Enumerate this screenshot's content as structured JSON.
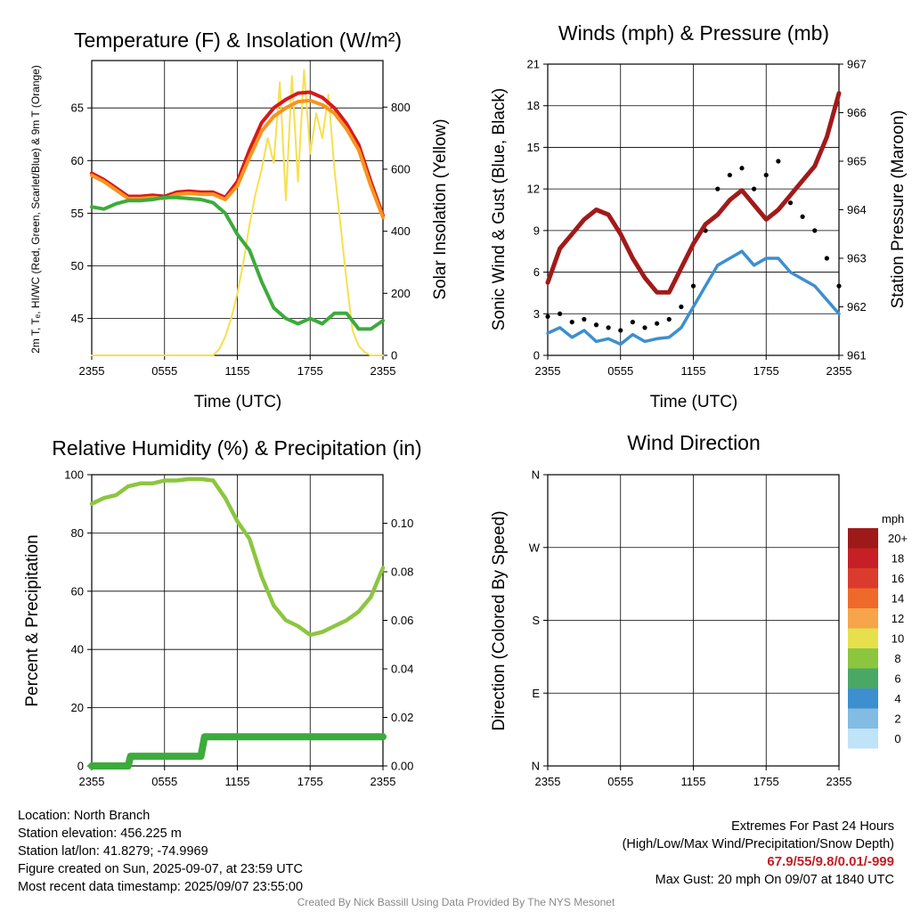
{
  "panels": {
    "temperature": {
      "title": "Temperature (F) & Insolation (W/m²)",
      "xlabel": "Time (UTC)",
      "ylabel_left": "2m T, Tₑ, HI/WC (Red, Green, Scarlet/Blue) & 9m T (Orange)",
      "ylabel_right": "Solar Insolation (Yellow)"
    },
    "winds": {
      "title": "Winds (mph) & Pressure (mb)",
      "xlabel": "Time (UTC)",
      "ylabel_left": "Sonic Wind & Gust (Blue, Black)",
      "ylabel_right": "Station Pressure (Maroon)"
    },
    "humidity": {
      "title": "Relative Humidity (%) & Precipitation (in)",
      "ylabel_left": "Percent & Precipitation"
    },
    "direction": {
      "title": "Wind Direction",
      "ylabel_left": "Direction (Colored By Speed)",
      "legend_title": "mph"
    }
  },
  "chart_data": [
    {
      "type": "line",
      "id": "temperature",
      "title": "Temperature (F) & Insolation (W/m²)",
      "xlabel": "Time (UTC)",
      "x_ticks": [
        "2355",
        "0555",
        "1155",
        "1755",
        "2355"
      ],
      "x_hours": [
        0,
        24
      ],
      "ylim": [
        41.5,
        69.5
      ],
      "y_ticks": [
        45,
        50,
        55,
        60,
        65
      ],
      "y2lim": [
        0,
        950
      ],
      "y2_ticks": [
        0,
        200,
        400,
        600,
        800
      ],
      "series": [
        {
          "name": "2m T",
          "color": "#d7191c",
          "axis": "left",
          "points": [
            [
              0,
              58.8
            ],
            [
              1,
              58.2
            ],
            [
              2,
              57.4
            ],
            [
              3,
              56.6
            ],
            [
              4,
              56.6
            ],
            [
              5,
              56.7
            ],
            [
              6,
              56.6
            ],
            [
              7,
              57.0
            ],
            [
              8,
              57.1
            ],
            [
              9,
              57.0
            ],
            [
              10,
              57.0
            ],
            [
              11,
              56.5
            ],
            [
              12,
              58.0
            ],
            [
              13,
              61.0
            ],
            [
              14,
              63.6
            ],
            [
              15,
              65.0
            ],
            [
              16,
              65.8
            ],
            [
              17,
              66.4
            ],
            [
              18,
              66.5
            ],
            [
              19,
              66.0
            ],
            [
              20,
              65.0
            ],
            [
              21,
              63.5
            ],
            [
              22,
              61.5
            ],
            [
              23,
              58.0
            ],
            [
              24,
              54.8
            ]
          ]
        },
        {
          "name": "9m T",
          "color": "#f7941d",
          "axis": "left",
          "points": [
            [
              0,
              58.6
            ],
            [
              1,
              58.0
            ],
            [
              2,
              57.2
            ],
            [
              3,
              56.4
            ],
            [
              4,
              56.4
            ],
            [
              5,
              56.5
            ],
            [
              6,
              56.4
            ],
            [
              7,
              56.8
            ],
            [
              8,
              56.9
            ],
            [
              9,
              56.8
            ],
            [
              10,
              56.8
            ],
            [
              11,
              56.3
            ],
            [
              12,
              57.6
            ],
            [
              13,
              60.3
            ],
            [
              14,
              62.8
            ],
            [
              15,
              64.2
            ],
            [
              16,
              65.0
            ],
            [
              17,
              65.6
            ],
            [
              18,
              65.7
            ],
            [
              19,
              65.3
            ],
            [
              20,
              64.5
            ],
            [
              21,
              63.0
            ],
            [
              22,
              61.0
            ],
            [
              23,
              57.6
            ],
            [
              24,
              54.6
            ]
          ]
        },
        {
          "name": "Td",
          "color": "#3cab3c",
          "axis": "left",
          "points": [
            [
              0,
              55.6
            ],
            [
              1,
              55.4
            ],
            [
              2,
              55.9
            ],
            [
              3,
              56.2
            ],
            [
              4,
              56.2
            ],
            [
              5,
              56.3
            ],
            [
              6,
              56.5
            ],
            [
              7,
              56.5
            ],
            [
              8,
              56.4
            ],
            [
              9,
              56.3
            ],
            [
              10,
              56.0
            ],
            [
              11,
              55.0
            ],
            [
              12,
              53.0
            ],
            [
              13,
              51.5
            ],
            [
              14,
              48.5
            ],
            [
              15,
              46.0
            ],
            [
              16,
              45.0
            ],
            [
              17,
              44.5
            ],
            [
              18,
              45.0
            ],
            [
              19,
              44.5
            ],
            [
              20,
              45.5
            ],
            [
              21,
              45.5
            ],
            [
              22,
              44.0
            ],
            [
              23,
              44.0
            ],
            [
              24,
              44.8
            ]
          ]
        },
        {
          "name": "Solar",
          "color": "#f5e050",
          "axis": "right",
          "points": [
            [
              0,
              0
            ],
            [
              8,
              0
            ],
            [
              10,
              0
            ],
            [
              10.5,
              20
            ],
            [
              11,
              60
            ],
            [
              11.5,
              120
            ],
            [
              12,
              200
            ],
            [
              12.5,
              300
            ],
            [
              13,
              420
            ],
            [
              13.5,
              520
            ],
            [
              14,
              600
            ],
            [
              14.5,
              700
            ],
            [
              15,
              620
            ],
            [
              15.5,
              880
            ],
            [
              16,
              500
            ],
            [
              16.5,
              900
            ],
            [
              17,
              560
            ],
            [
              17.5,
              920
            ],
            [
              18,
              650
            ],
            [
              18.5,
              780
            ],
            [
              19,
              700
            ],
            [
              19.5,
              840
            ],
            [
              20,
              600
            ],
            [
              20.5,
              420
            ],
            [
              21,
              240
            ],
            [
              21.5,
              80
            ],
            [
              22,
              30
            ],
            [
              22.5,
              10
            ],
            [
              23,
              0
            ],
            [
              24,
              0
            ]
          ]
        }
      ]
    },
    {
      "type": "line",
      "id": "winds",
      "title": "Winds (mph) & Pressure (mb)",
      "xlabel": "Time (UTC)",
      "x_ticks": [
        "2355",
        "0555",
        "1155",
        "1755",
        "2355"
      ],
      "ylim": [
        0,
        21
      ],
      "y_ticks": [
        0,
        3,
        6,
        9,
        12,
        15,
        18,
        21
      ],
      "y2lim": [
        961,
        967
      ],
      "y2_ticks": [
        961,
        962,
        963,
        964,
        965,
        966,
        967
      ],
      "series": [
        {
          "name": "Sonic Wind",
          "color": "#3d8fcf",
          "axis": "left",
          "points": [
            [
              0,
              1.6
            ],
            [
              1,
              2.0
            ],
            [
              2,
              1.3
            ],
            [
              3,
              1.8
            ],
            [
              4,
              1.0
            ],
            [
              5,
              1.2
            ],
            [
              6,
              0.8
            ],
            [
              7,
              1.5
            ],
            [
              8,
              1.0
            ],
            [
              9,
              1.2
            ],
            [
              10,
              1.3
            ],
            [
              11,
              2.0
            ],
            [
              12,
              3.5
            ],
            [
              13,
              5.0
            ],
            [
              14,
              6.5
            ],
            [
              15,
              7.0
            ],
            [
              16,
              7.5
            ],
            [
              17,
              6.5
            ],
            [
              18,
              7.0
            ],
            [
              19,
              7.0
            ],
            [
              20,
              6.0
            ],
            [
              21,
              5.5
            ],
            [
              22,
              5.0
            ],
            [
              23,
              4.0
            ],
            [
              24,
              3.0
            ]
          ]
        },
        {
          "name": "Gust",
          "color": "#000000",
          "axis": "left",
          "points": [
            [
              0,
              2.8
            ],
            [
              1,
              3.0
            ],
            [
              2,
              2.4
            ],
            [
              3,
              2.6
            ],
            [
              4,
              2.2
            ],
            [
              5,
              2.0
            ],
            [
              6,
              1.8
            ],
            [
              7,
              2.4
            ],
            [
              8,
              2.0
            ],
            [
              9,
              2.3
            ],
            [
              10,
              2.6
            ],
            [
              11,
              3.5
            ],
            [
              12,
              5.0
            ],
            [
              13,
              9.0
            ],
            [
              14,
              12.0
            ],
            [
              15,
              13.0
            ],
            [
              16,
              13.5
            ],
            [
              17,
              12.0
            ],
            [
              18,
              13.0
            ],
            [
              19,
              14.0
            ],
            [
              20,
              11.0
            ],
            [
              21,
              10.0
            ],
            [
              22,
              9.0
            ],
            [
              23,
              7.0
            ],
            [
              24,
              5.0
            ]
          ]
        },
        {
          "name": "Station Pressure",
          "color": "#a11a1a",
          "axis": "right",
          "points": [
            [
              0,
              962.5
            ],
            [
              1,
              963.2
            ],
            [
              2,
              963.5
            ],
            [
              3,
              963.8
            ],
            [
              4,
              964.0
            ],
            [
              5,
              963.9
            ],
            [
              6,
              963.5
            ],
            [
              7,
              963.0
            ],
            [
              8,
              962.6
            ],
            [
              9,
              962.3
            ],
            [
              10,
              962.3
            ],
            [
              11,
              962.8
            ],
            [
              12,
              963.3
            ],
            [
              13,
              963.7
            ],
            [
              14,
              963.9
            ],
            [
              15,
              964.2
            ],
            [
              16,
              964.4
            ],
            [
              17,
              964.1
            ],
            [
              18,
              963.8
            ],
            [
              19,
              964.0
            ],
            [
              20,
              964.3
            ],
            [
              21,
              964.6
            ],
            [
              22,
              964.9
            ],
            [
              23,
              965.5
            ],
            [
              24,
              966.4
            ]
          ]
        }
      ]
    },
    {
      "type": "line",
      "id": "humidity",
      "title": "Relative Humidity (%) & Precipitation (in)",
      "x_ticks": [
        "2355",
        "0555",
        "1155",
        "1755",
        "2355"
      ],
      "ylim": [
        0,
        100
      ],
      "y_ticks": [
        0,
        20,
        40,
        60,
        80,
        100
      ],
      "y2lim": [
        0,
        0.12
      ],
      "y2_ticks": [
        "0.00",
        "0.02",
        "0.04",
        "0.06",
        "0.08",
        "0.10"
      ],
      "series": [
        {
          "name": "RH",
          "color": "#8cc63f",
          "axis": "left",
          "points": [
            [
              0,
              90
            ],
            [
              1,
              92
            ],
            [
              2,
              93
            ],
            [
              3,
              96
            ],
            [
              4,
              97
            ],
            [
              5,
              97
            ],
            [
              6,
              98
            ],
            [
              7,
              98
            ],
            [
              8,
              98.5
            ],
            [
              9,
              98.5
            ],
            [
              10,
              98
            ],
            [
              11,
              92
            ],
            [
              12,
              84
            ],
            [
              13,
              78
            ],
            [
              14,
              65
            ],
            [
              15,
              55
            ],
            [
              16,
              50
            ],
            [
              17,
              48
            ],
            [
              18,
              45
            ],
            [
              19,
              46
            ],
            [
              20,
              48
            ],
            [
              21,
              50
            ],
            [
              22,
              53
            ],
            [
              23,
              58
            ],
            [
              24,
              68
            ]
          ]
        },
        {
          "name": "Precipitation",
          "color": "#3cab3c",
          "axis": "right",
          "points": [
            [
              0,
              0
            ],
            [
              3,
              0
            ],
            [
              3.2,
              0.004
            ],
            [
              9,
              0.004
            ],
            [
              9.3,
              0.012
            ],
            [
              24,
              0.012
            ]
          ]
        }
      ]
    },
    {
      "type": "scatter",
      "id": "direction",
      "title": "Wind Direction",
      "x_ticks": [
        "2355",
        "0555",
        "1155",
        "1755",
        "2355"
      ],
      "y_ticks": [
        "N",
        "W",
        "S",
        "E",
        "N"
      ],
      "ylim": [
        0,
        360
      ],
      "legend": {
        "title": "mph",
        "labels": [
          "20+",
          "18",
          "16",
          "14",
          "12",
          "10",
          "8",
          "6",
          "4",
          "2",
          "0"
        ],
        "colors": [
          "#9e1a1a",
          "#c62026",
          "#db3b2c",
          "#ef6a2a",
          "#f6a54a",
          "#e6e04d",
          "#8cc63f",
          "#4aa865",
          "#3d8fcf",
          "#82bce3",
          "#bfe3f7"
        ]
      }
    }
  ],
  "footer": {
    "location": "Location: North Branch",
    "elevation": "Station elevation: 456.225 m",
    "latlon": "Station lat/lon: 41.8279; -74.9969",
    "created": "Figure created on Sun, 2025-09-07, at 23:59 UTC",
    "recent": "Most recent data timestamp: 2025/09/07 23:55:00",
    "extremes_title": "Extremes For Past 24 Hours",
    "extremes_sub": "(High/Low/Max Wind/Precipitation/Snow Depth)",
    "extremes_values": "67.9/55/9.8/0.01/-999",
    "max_gust": "Max Gust: 20 mph On 09/07 at 1840 UTC",
    "credit": "Created By Nick Bassill Using Data Provided By The NYS Mesonet"
  }
}
